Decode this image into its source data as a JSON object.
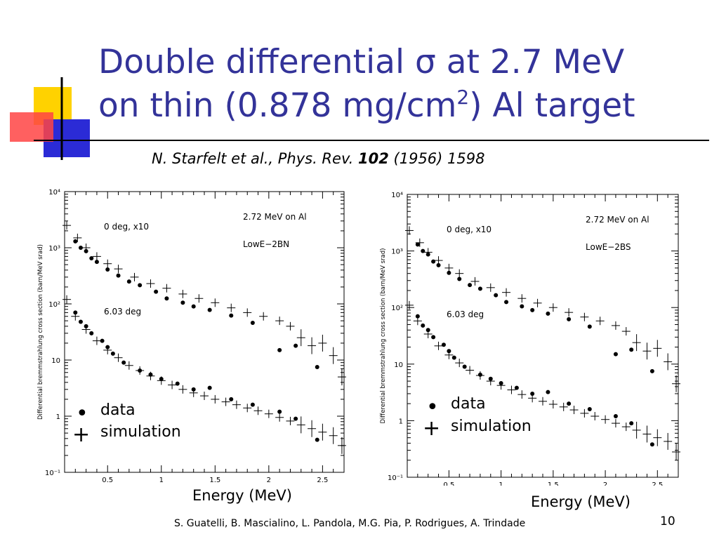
{
  "slide": {
    "title_main": "Double differential ",
    "title_sigma": "σ",
    "title_rest": " at 2.7 MeV",
    "title_line2_a": "on thin (0.878 mg/cm",
    "title_sup": "2",
    "title_line2_b": ") Al target",
    "citation_a": "N. Starfelt et al., Phys. Rev.  ",
    "citation_vol": "102",
    "citation_b": " (1956) 1598",
    "footer": "S. Guatelli, B. Mascialino, L. Pandola, M.G. Pia, P. Rodrigues, A. Trindade",
    "page_number": "10",
    "colors": {
      "title": "#333399",
      "accent_yellow": "#ffd200",
      "accent_blue": "#2b2bd6",
      "accent_red": "#ff3333"
    }
  },
  "legend": {
    "data_label": "data",
    "sim_label": "simulation",
    "data_symbol": "•",
    "sim_symbol": "+"
  },
  "chart_data": [
    {
      "type": "scatter",
      "title": "2.72 MeV on Al",
      "model": "LowE−2BN",
      "xlabel": "Energy (MeV)",
      "ylabel": "Differential bremmstrahlung cross section (barn/MeV srad)",
      "xlim": [
        0.1,
        2.7
      ],
      "ylim": [
        0.1,
        10000
      ],
      "yscale": "log",
      "xticks": [
        "0.5",
        "1",
        "1.5",
        "2",
        "2.5"
      ],
      "yticks": [
        "10⁻¹",
        "1",
        "10",
        "10²",
        "10³",
        "10⁴"
      ],
      "annotations": [
        "0 deg, x10",
        "6.03 deg"
      ],
      "series": [
        {
          "name": "data",
          "marker": "dot",
          "x": [
            0.2,
            0.25,
            0.3,
            0.35,
            0.4,
            0.5,
            0.6,
            0.7,
            0.8,
            0.95,
            1.05,
            1.2,
            1.3,
            1.45,
            1.65,
            1.85,
            2.1,
            2.25,
            2.45
          ],
          "y": [
            1300,
            1000,
            870,
            650,
            560,
            410,
            320,
            250,
            215,
            165,
            125,
            105,
            90,
            78,
            62,
            46,
            15,
            18,
            7.5
          ]
        },
        {
          "name": "simulation",
          "marker": "plus",
          "x": [
            0.12,
            0.22,
            0.3,
            0.4,
            0.5,
            0.6,
            0.75,
            0.9,
            1.05,
            1.2,
            1.35,
            1.5,
            1.65,
            1.8,
            1.95,
            2.1,
            2.2,
            2.3,
            2.4,
            2.5,
            2.6,
            2.68
          ],
          "y": [
            2500,
            1500,
            1000,
            700,
            520,
            420,
            300,
            230,
            190,
            150,
            125,
            105,
            85,
            70,
            60,
            50,
            40,
            25,
            18,
            20,
            12,
            5
          ]
        },
        {
          "name": "data",
          "marker": "dot",
          "x": [
            0.2,
            0.25,
            0.3,
            0.35,
            0.45,
            0.5,
            0.55,
            0.65,
            0.8,
            0.9,
            1.0,
            1.15,
            1.3,
            1.45,
            1.65,
            1.85,
            2.1,
            2.25,
            2.45
          ],
          "y": [
            70,
            48,
            40,
            30,
            22,
            17,
            13,
            9,
            6.5,
            5.5,
            4.6,
            3.8,
            3.0,
            3.2,
            2.0,
            1.6,
            1.2,
            0.9,
            0.38
          ]
        },
        {
          "name": "simulation",
          "marker": "plus",
          "x": [
            0.12,
            0.2,
            0.3,
            0.4,
            0.5,
            0.6,
            0.7,
            0.8,
            0.9,
            1.0,
            1.1,
            1.2,
            1.3,
            1.4,
            1.5,
            1.6,
            1.7,
            1.8,
            1.9,
            2.0,
            2.1,
            2.2,
            2.3,
            2.4,
            2.5,
            2.6,
            2.68
          ],
          "y": [
            120,
            60,
            35,
            22,
            15,
            11,
            8,
            6.5,
            5.2,
            4.3,
            3.6,
            3.0,
            2.6,
            2.3,
            2.0,
            1.8,
            1.6,
            1.4,
            1.25,
            1.1,
            0.95,
            0.82,
            0.7,
            0.6,
            0.52,
            0.45,
            0.3
          ]
        }
      ]
    },
    {
      "type": "scatter",
      "title": "2.72 MeV on Al",
      "model": "LowE−2BS",
      "xlabel": "Energy (MeV)",
      "ylabel": "Differential bremmstrahlung cross section (barn/MeV srad)",
      "xlim": [
        0.1,
        2.7
      ],
      "ylim": [
        0.1,
        10000
      ],
      "yscale": "log",
      "xticks": [
        "0.5",
        "1",
        "1.5",
        "2",
        "2.5"
      ],
      "yticks": [
        "10⁻¹",
        "1",
        "10",
        "10²",
        "10³",
        "10⁴"
      ],
      "annotations": [
        "0 deg, x10",
        "6.03 deg"
      ],
      "series": [
        {
          "name": "data",
          "marker": "dot",
          "x": [
            0.2,
            0.25,
            0.3,
            0.35,
            0.4,
            0.5,
            0.6,
            0.7,
            0.8,
            0.95,
            1.05,
            1.2,
            1.3,
            1.45,
            1.65,
            1.85,
            2.1,
            2.25,
            2.45
          ],
          "y": [
            1300,
            1000,
            870,
            650,
            560,
            410,
            320,
            250,
            215,
            165,
            125,
            105,
            90,
            78,
            62,
            46,
            15,
            18,
            7.5
          ]
        },
        {
          "name": "simulation",
          "marker": "plus",
          "x": [
            0.12,
            0.22,
            0.3,
            0.4,
            0.5,
            0.6,
            0.75,
            0.9,
            1.05,
            1.2,
            1.35,
            1.5,
            1.65,
            1.8,
            1.95,
            2.1,
            2.2,
            2.3,
            2.4,
            2.5,
            2.6,
            2.68
          ],
          "y": [
            2300,
            1400,
            950,
            680,
            500,
            400,
            290,
            225,
            185,
            145,
            120,
            100,
            82,
            68,
            58,
            48,
            38,
            24,
            17,
            19,
            11,
            4.5
          ]
        },
        {
          "name": "data",
          "marker": "dot",
          "x": [
            0.2,
            0.25,
            0.3,
            0.35,
            0.45,
            0.5,
            0.55,
            0.65,
            0.8,
            0.9,
            1.0,
            1.15,
            1.3,
            1.45,
            1.65,
            1.85,
            2.1,
            2.25,
            2.45
          ],
          "y": [
            70,
            48,
            40,
            30,
            22,
            17,
            13,
            9,
            6.5,
            5.5,
            4.6,
            3.8,
            3.0,
            3.2,
            2.0,
            1.6,
            1.2,
            0.9,
            0.38
          ]
        },
        {
          "name": "simulation",
          "marker": "plus",
          "x": [
            0.12,
            0.2,
            0.3,
            0.4,
            0.5,
            0.6,
            0.7,
            0.8,
            0.9,
            1.0,
            1.1,
            1.2,
            1.3,
            1.4,
            1.5,
            1.6,
            1.7,
            1.8,
            1.9,
            2.0,
            2.1,
            2.2,
            2.3,
            2.4,
            2.5,
            2.6,
            2.68
          ],
          "y": [
            110,
            58,
            34,
            21,
            14.5,
            10.5,
            7.8,
            6.3,
            5.0,
            4.2,
            3.5,
            2.9,
            2.5,
            2.2,
            1.95,
            1.75,
            1.55,
            1.35,
            1.2,
            1.05,
            0.9,
            0.78,
            0.68,
            0.58,
            0.5,
            0.43,
            0.28
          ]
        }
      ]
    }
  ]
}
